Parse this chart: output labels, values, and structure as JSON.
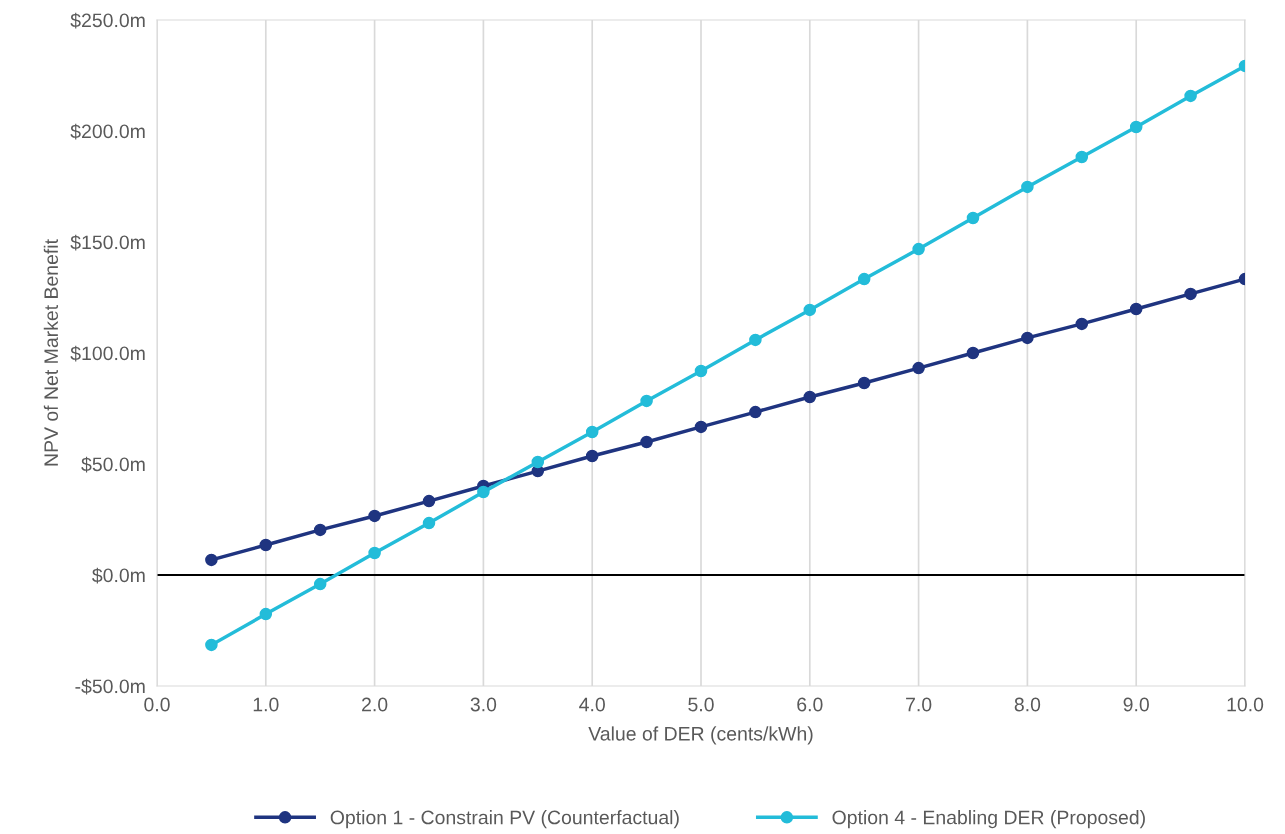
{
  "chart_data": {
    "type": "line",
    "xlabel": "Value of DER (cents/kWh)",
    "ylabel": "NPV of Net Market Benefit",
    "x": [
      0.5,
      1,
      1.5,
      2,
      2.5,
      3,
      3.5,
      4,
      4.5,
      5,
      5.5,
      6,
      6.5,
      7,
      7.5,
      8,
      8.5,
      9,
      9.5,
      10
    ],
    "series": [
      {
        "name": "Option 1 - Constrain PV (Counterfactual)",
        "color": "#1f3480",
        "values": [
          6.8,
          13.5,
          20.3,
          26.6,
          33.3,
          40.1,
          46.8,
          53.6,
          59.9,
          66.7,
          73.4,
          80.2,
          86.5,
          93.2,
          100,
          106.8,
          113.1,
          119.8,
          126.6,
          133.3
        ]
      },
      {
        "name": "Option 4 - Enabling DER (Proposed)",
        "color": "#23bcd9",
        "values": [
          -31.5,
          -17.6,
          -4.1,
          9.9,
          23.4,
          37.4,
          50.9,
          64.4,
          78.4,
          91.9,
          105.9,
          119.4,
          133.3,
          146.8,
          160.8,
          174.8,
          188.3,
          201.8,
          215.8,
          229.3
        ]
      }
    ],
    "xlim": [
      0,
      10
    ],
    "xticks": [
      {
        "value": 0,
        "label": "0.0"
      },
      {
        "value": 1,
        "label": "1.0"
      },
      {
        "value": 2,
        "label": "2.0"
      },
      {
        "value": 3,
        "label": "3.0"
      },
      {
        "value": 4,
        "label": "4.0"
      },
      {
        "value": 5,
        "label": "5.0"
      },
      {
        "value": 6,
        "label": "6.0"
      },
      {
        "value": 7,
        "label": "7.0"
      },
      {
        "value": 8,
        "label": "8.0"
      },
      {
        "value": 9,
        "label": "9.0"
      },
      {
        "value": 10,
        "label": "10.0"
      }
    ],
    "ylim": [
      -50,
      250
    ],
    "yticks": [
      {
        "value": -50,
        "label": "-$50.0m"
      },
      {
        "value": 0,
        "label": "$0.0m"
      },
      {
        "value": 50,
        "label": "$50.0m"
      },
      {
        "value": 100,
        "label": "$100.0m"
      },
      {
        "value": 150,
        "label": "$150.0m"
      },
      {
        "value": 200,
        "label": "$200.0m"
      },
      {
        "value": 250,
        "label": "$250.0m"
      }
    ],
    "ref_lines": [
      {
        "axis": "y",
        "value": 0,
        "color": "#000000"
      }
    ],
    "grid": "x",
    "legend": "bottom",
    "marker": "circle",
    "line_style": "solid"
  }
}
